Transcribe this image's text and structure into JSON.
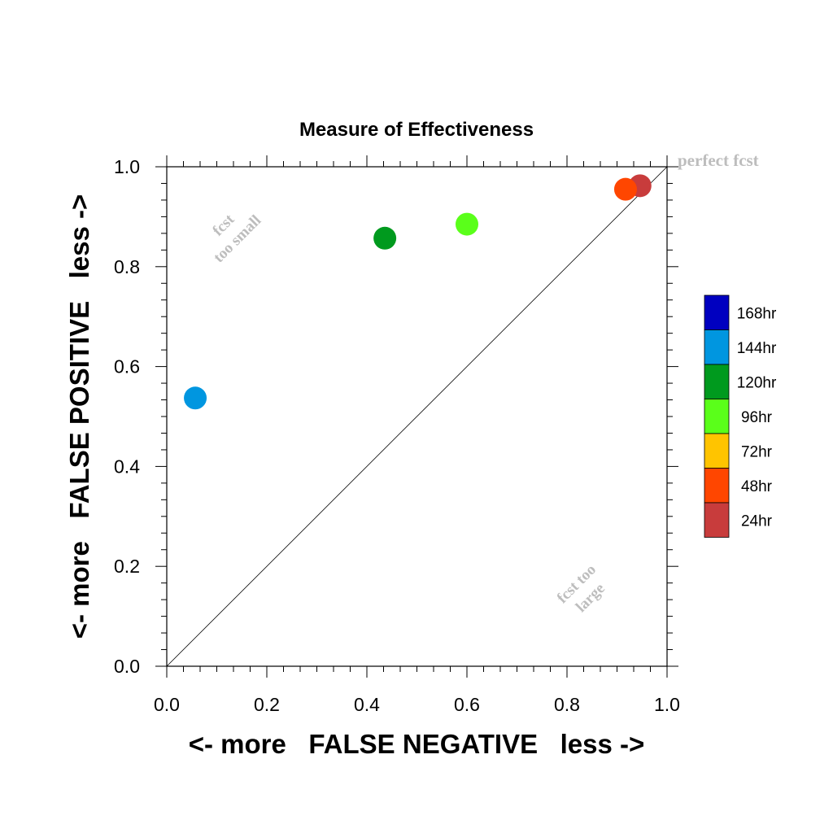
{
  "chart_data": {
    "type": "scatter",
    "title": "Measure of Effectiveness",
    "xlabel": "<- more   FALSE NEGATIVE   less ->",
    "ylabel": "<- more   FALSE POSITIVE   less ->",
    "xlim": [
      0.0,
      1.0
    ],
    "ylim": [
      0.0,
      1.0
    ],
    "xticks": [
      "0.0",
      "0.2",
      "0.4",
      "0.6",
      "0.8",
      "1.0"
    ],
    "yticks": [
      "0.0",
      "0.2",
      "0.4",
      "0.6",
      "0.8",
      "1.0"
    ],
    "grid": false,
    "legend_position": "right",
    "diagonal_line": true,
    "annotations": {
      "perfect": "perfect fcst",
      "too_small_line1": "fcst",
      "too_small_line2": "too small",
      "too_large_line1": "fcst too",
      "too_large_line2": "large"
    },
    "legend": [
      {
        "name": "168hr",
        "color": "#0000c0"
      },
      {
        "name": "144hr",
        "color": "#0096e0"
      },
      {
        "name": "120hr",
        "color": "#009a1e"
      },
      {
        "name": "96hr",
        "color": "#5aff1a"
      },
      {
        "name": "72hr",
        "color": "#ffc400"
      },
      {
        "name": "48hr",
        "color": "#ff4600"
      },
      {
        "name": "24hr",
        "color": "#c83c3c"
      }
    ],
    "points": [
      {
        "series": "144hr",
        "x": 0.057,
        "y": 0.537,
        "color": "#0096e0"
      },
      {
        "series": "120hr",
        "x": 0.436,
        "y": 0.857,
        "color": "#009a1e"
      },
      {
        "series": "96hr",
        "x": 0.6,
        "y": 0.885,
        "color": "#5aff1a"
      },
      {
        "series": "24hr",
        "x": 0.946,
        "y": 0.962,
        "color": "#c83c3c"
      },
      {
        "series": "48hr",
        "x": 0.917,
        "y": 0.955,
        "color": "#ff4600"
      }
    ]
  }
}
